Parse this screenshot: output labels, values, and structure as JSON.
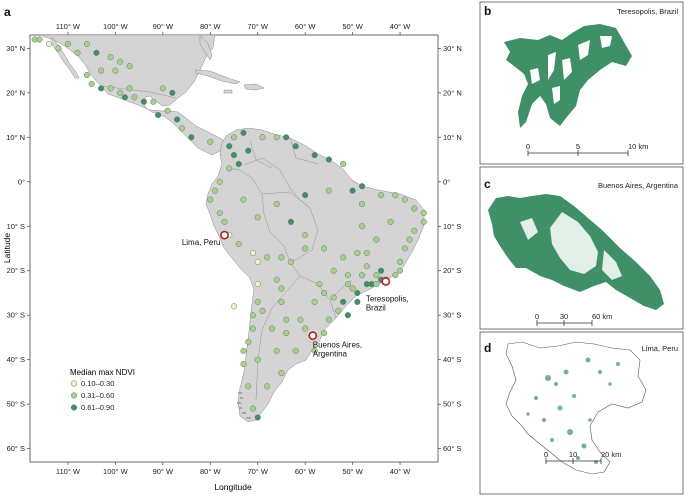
{
  "figure": {
    "panel_a": {
      "letter": "a",
      "x_axis_title": "Longitude",
      "y_axis_title": "Latitude",
      "lon_ticks": [
        {
          "value": -110,
          "label": "110° W"
        },
        {
          "value": -100,
          "label": "100° W"
        },
        {
          "value": -90,
          "label": "90° W"
        },
        {
          "value": -80,
          "label": "80° W"
        },
        {
          "value": -70,
          "label": "70° W"
        },
        {
          "value": -60,
          "label": "60° W"
        },
        {
          "value": -50,
          "label": "50° W"
        },
        {
          "value": -40,
          "label": "40° W"
        }
      ],
      "lat_ticks": [
        {
          "value": 30,
          "label": "30° N"
        },
        {
          "value": 20,
          "label": "20° N"
        },
        {
          "value": 10,
          "label": "10° N"
        },
        {
          "value": 0,
          "label": "0°"
        },
        {
          "value": -10,
          "label": "10° S"
        },
        {
          "value": -20,
          "label": "20° S"
        },
        {
          "value": -30,
          "label": "30° S"
        },
        {
          "value": -40,
          "label": "40° S"
        },
        {
          "value": -50,
          "label": "50° S"
        },
        {
          "value": -60,
          "label": "60° S"
        }
      ],
      "lon_range": [
        -118,
        -32
      ],
      "lat_range": [
        -63,
        33
      ],
      "legend": {
        "title": "Median max NDVI",
        "items": [
          {
            "label": "0.10–0.30",
            "color": "#f1f3c4"
          },
          {
            "label": "0.31–0.60",
            "color": "#a9cf8d"
          },
          {
            "label": "0.61–0.90",
            "color": "#3f8f67"
          }
        ]
      },
      "highlighted_cities": [
        {
          "name": "Lima, Peru",
          "lon": -77.0,
          "lat": -12.0,
          "label_lines": [
            "Lima, Peru"
          ]
        },
        {
          "name": "Teresopolis, Brazil",
          "lon": -43.0,
          "lat": -22.4,
          "label_lines": [
            "Teresopolis,",
            "Brazil"
          ]
        },
        {
          "name": "Buenos Aires, Argentina",
          "lon": -58.4,
          "lat": -34.6,
          "label_lines": [
            "Buenos Aires,",
            "Argentina"
          ]
        }
      ],
      "highlight_color": "#b22222"
    },
    "panel_b": {
      "letter": "b",
      "title": "Teresopolis, Brazil",
      "scale_ticks": [
        "0",
        "5",
        "10 km"
      ]
    },
    "panel_c": {
      "letter": "c",
      "title": "Buenos Aires, Argentina",
      "scale_ticks": [
        "0",
        "30",
        "60 km"
      ]
    },
    "panel_d": {
      "letter": "d",
      "title": "Lima, Peru",
      "scale_ticks": [
        "0",
        "10",
        "20 km"
      ]
    },
    "colors": {
      "land": "#d4d4d4",
      "ocean": "#ffffff",
      "urban_green": "#3f8f67"
    },
    "city_points": [
      [
        -117,
        32,
        1
      ],
      [
        -116,
        32,
        1
      ],
      [
        -114,
        31,
        0
      ],
      [
        -112,
        30,
        1
      ],
      [
        -110,
        31,
        1
      ],
      [
        -108,
        29,
        1
      ],
      [
        -106,
        31,
        1
      ],
      [
        -104,
        29,
        2
      ],
      [
        -101,
        28,
        1
      ],
      [
        -99,
        27,
        1
      ],
      [
        -97,
        26,
        1
      ],
      [
        -100,
        25,
        1
      ],
      [
        -103,
        25,
        1
      ],
      [
        -106,
        24,
        1
      ],
      [
        -105,
        22,
        1
      ],
      [
        -103,
        21,
        2
      ],
      [
        -101,
        21,
        1
      ],
      [
        -99,
        20,
        1
      ],
      [
        -98,
        19,
        2
      ],
      [
        -97,
        21,
        1
      ],
      [
        -96,
        19,
        1
      ],
      [
        -94,
        18,
        2
      ],
      [
        -92,
        18,
        1
      ],
      [
        -90,
        21,
        1
      ],
      [
        -88,
        20,
        2
      ],
      [
        -89,
        16,
        1
      ],
      [
        -91,
        15,
        2
      ],
      [
        -87,
        14,
        2
      ],
      [
        -86,
        12,
        1
      ],
      [
        -84,
        10,
        2
      ],
      [
        -80,
        9,
        1
      ],
      [
        -75,
        10,
        1
      ],
      [
        -73,
        11,
        2
      ],
      [
        -76,
        8,
        2
      ],
      [
        -75,
        6,
        2
      ],
      [
        -74,
        4,
        2
      ],
      [
        -76,
        3,
        1
      ],
      [
        -72,
        7,
        2
      ],
      [
        -69,
        10,
        1
      ],
      [
        -66,
        10,
        1
      ],
      [
        -64,
        10,
        2
      ],
      [
        -62,
        8,
        2
      ],
      [
        -58,
        6,
        2
      ],
      [
        -55,
        5,
        2
      ],
      [
        -52,
        4,
        1
      ],
      [
        -78,
        0,
        1
      ],
      [
        -79,
        -2,
        1
      ],
      [
        -80,
        -4,
        1
      ],
      [
        -78,
        -7,
        1
      ],
      [
        -77,
        -9,
        1
      ],
      [
        -76,
        -12,
        0
      ],
      [
        -74,
        -14,
        1
      ],
      [
        -71,
        -16,
        0
      ],
      [
        -70,
        -18,
        0
      ],
      [
        -70,
        -23,
        0
      ],
      [
        -70,
        -27,
        1
      ],
      [
        -71,
        -30,
        1
      ],
      [
        -71,
        -33,
        1
      ],
      [
        -72,
        -36,
        1
      ],
      [
        -73,
        -38,
        1
      ],
      [
        -73,
        -41,
        1
      ],
      [
        -72,
        -46,
        1
      ],
      [
        -71,
        -51,
        1
      ],
      [
        -70,
        -53,
        2
      ],
      [
        -68,
        -46,
        1
      ],
      [
        -65,
        -43,
        1
      ],
      [
        -62,
        -38,
        1
      ],
      [
        -58,
        -38,
        1
      ],
      [
        -60,
        -33,
        1
      ],
      [
        -61,
        -31,
        1
      ],
      [
        -64,
        -31,
        1
      ],
      [
        -65,
        -27,
        1
      ],
      [
        -65,
        -24,
        1
      ],
      [
        -66,
        -22,
        1
      ],
      [
        -68,
        -17,
        1
      ],
      [
        -65,
        -17,
        1
      ],
      [
        -63,
        -18,
        1
      ],
      [
        -60,
        -15,
        1
      ],
      [
        -60,
        -12,
        1
      ],
      [
        -63,
        -9,
        2
      ],
      [
        -60,
        -3,
        2
      ],
      [
        -55,
        -2,
        1
      ],
      [
        -50,
        -2,
        2
      ],
      [
        -48,
        -1,
        2
      ],
      [
        -44,
        -3,
        1
      ],
      [
        -41,
        -3,
        1
      ],
      [
        -39,
        -4,
        1
      ],
      [
        -37,
        -6,
        1
      ],
      [
        -35,
        -7,
        1
      ],
      [
        -35,
        -9,
        1
      ],
      [
        -37,
        -11,
        1
      ],
      [
        -38,
        -13,
        1
      ],
      [
        -39,
        -15,
        1
      ],
      [
        -40,
        -18,
        1
      ],
      [
        -40,
        -20,
        1
      ],
      [
        -44,
        -20,
        2
      ],
      [
        -47,
        -16,
        1
      ],
      [
        -49,
        -16,
        1
      ],
      [
        -47,
        -19,
        1
      ],
      [
        -44,
        -22,
        2
      ],
      [
        -46,
        -23,
        2
      ],
      [
        -47,
        -23,
        2
      ],
      [
        -49,
        -25,
        2
      ],
      [
        -51,
        -23,
        1
      ],
      [
        -52,
        -27,
        2
      ],
      [
        -49,
        -27,
        2
      ],
      [
        -51,
        -30,
        2
      ],
      [
        -53,
        -29,
        1
      ],
      [
        -55,
        -31,
        1
      ],
      [
        -56,
        -34,
        1
      ],
      [
        -54,
        -26,
        1
      ],
      [
        -56,
        -25,
        1
      ],
      [
        -58,
        -27,
        1
      ],
      [
        -57,
        -23,
        1
      ],
      [
        -51,
        -21,
        1
      ],
      [
        -48,
        -10,
        1
      ],
      [
        -45,
        -13,
        1
      ],
      [
        -42,
        -9,
        1
      ],
      [
        -52,
        -17,
        1
      ],
      [
        -54,
        -20,
        1
      ],
      [
        -56,
        -15,
        1
      ],
      [
        -48,
        -5,
        1
      ],
      [
        -66,
        -5,
        1
      ],
      [
        -73,
        -4,
        1
      ],
      [
        -70,
        -8,
        1
      ],
      [
        -75,
        -28,
        0
      ],
      [
        -69,
        -29,
        1
      ],
      [
        -67,
        -33,
        1
      ],
      [
        -70,
        -40,
        1
      ],
      [
        -66,
        -38,
        1
      ],
      [
        -64,
        -34,
        1
      ],
      [
        -45,
        -23,
        1
      ],
      [
        -43,
        -22,
        2
      ],
      [
        -41,
        -21,
        1
      ],
      [
        -45,
        -21,
        1
      ],
      [
        -48,
        -21,
        1
      ],
      [
        -50,
        -24,
        1
      ]
    ]
  }
}
